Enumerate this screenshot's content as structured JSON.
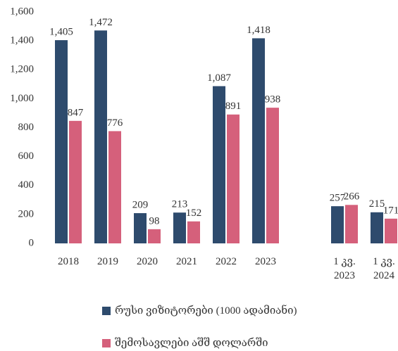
{
  "chart_data": {
    "type": "bar",
    "categories": [
      "2018",
      "2019",
      "2020",
      "2021",
      "2022",
      "2023",
      null,
      "1 კვ. 2023",
      "1 კვ. 2024"
    ],
    "series": [
      {
        "name": "რუსი ვიზიტორები (1000 ადამიანი)",
        "color": "#2e4b6d",
        "values": [
          1405,
          1472,
          209,
          213,
          1087,
          1418,
          null,
          257,
          215
        ],
        "value_labels": [
          "1,405",
          "1,472",
          "209",
          "213",
          "1,087",
          "1,418",
          null,
          "257",
          "215"
        ]
      },
      {
        "name": "შემოსავლები აშშ დოლარში",
        "color": "#d5607b",
        "values": [
          847,
          776,
          98,
          152,
          891,
          938,
          null,
          266,
          171
        ],
        "value_labels": [
          "847",
          "776",
          "98",
          "152",
          "891",
          "938",
          null,
          "266",
          "171"
        ]
      }
    ],
    "ylim": [
      0,
      1600
    ],
    "yticks": [
      0,
      200,
      400,
      600,
      800,
      {
        "value": 1000,
        "label": "1,000"
      },
      {
        "value": 1200,
        "label": "1,200"
      },
      {
        "value": 1400,
        "label": "1,400"
      },
      {
        "value": 1600,
        "label": "1,600"
      }
    ],
    "grid": false,
    "legend": "bottom"
  }
}
